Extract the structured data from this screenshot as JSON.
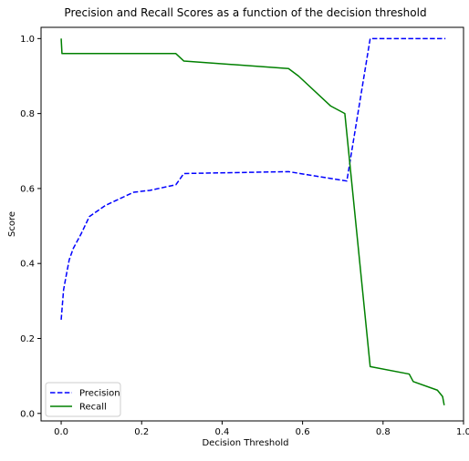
{
  "chart_data": {
    "type": "line",
    "title": "Precision and Recall Scores as a function of the decision threshold",
    "xlabel": "Decision Threshold",
    "ylabel": "Score",
    "xlim": [
      -0.05,
      1.0
    ],
    "ylim": [
      -0.02,
      1.03
    ],
    "xticks": [
      0.0,
      0.2,
      0.4,
      0.6,
      0.8,
      1.0
    ],
    "xtick_labels": [
      "0.0",
      "0.2",
      "0.4",
      "0.6",
      "0.8",
      "1.0"
    ],
    "yticks": [
      0.0,
      0.2,
      0.4,
      0.6,
      0.8,
      1.0
    ],
    "ytick_labels": [
      "0.0",
      "0.2",
      "0.4",
      "0.6",
      "0.8",
      "1.0"
    ],
    "grid": false,
    "legend_position": "lower-left",
    "series": [
      {
        "name": "Precision",
        "color": "#0000ff",
        "linestyle": "dashed",
        "x": [
          0.0,
          0.006,
          0.012,
          0.02,
          0.03,
          0.05,
          0.07,
          0.09,
          0.11,
          0.14,
          0.16,
          0.18,
          0.22,
          0.285,
          0.305,
          0.565,
          0.71,
          0.768,
          0.955
        ],
        "y": [
          0.25,
          0.33,
          0.365,
          0.41,
          0.44,
          0.48,
          0.525,
          0.54,
          0.555,
          0.57,
          0.58,
          0.59,
          0.595,
          0.61,
          0.64,
          0.645,
          0.62,
          1.0,
          1.0
        ]
      },
      {
        "name": "Recall",
        "color": "#008000",
        "linestyle": "solid",
        "x": [
          0.0,
          0.002,
          0.285,
          0.305,
          0.565,
          0.59,
          0.67,
          0.705,
          0.768,
          0.865,
          0.875,
          0.935,
          0.948,
          0.952
        ],
        "y": [
          1.0,
          0.96,
          0.96,
          0.94,
          0.92,
          0.9,
          0.82,
          0.8,
          0.125,
          0.105,
          0.085,
          0.062,
          0.045,
          0.022
        ]
      }
    ]
  }
}
